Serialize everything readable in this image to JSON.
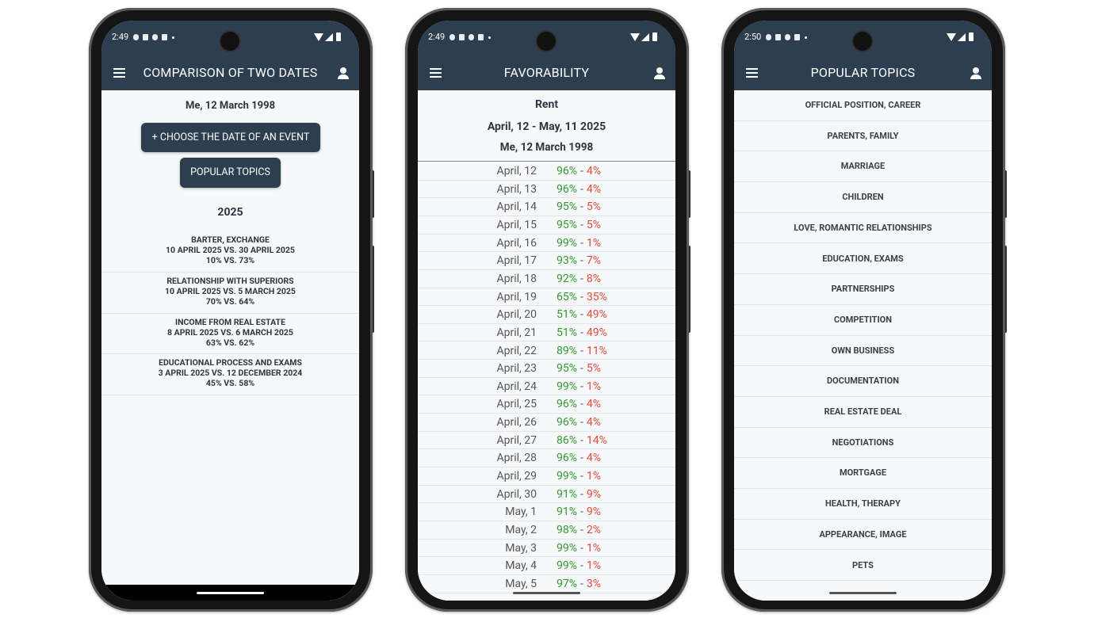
{
  "screens": [
    {
      "status_time": "2:49",
      "title": "COMPARISON OF TWO DATES",
      "subtitle": "Me, 12 March 1998",
      "buttons": [
        "+ CHOOSE THE DATE OF AN EVENT",
        "POPULAR TOPICS"
      ],
      "year": "2025",
      "items": [
        {
          "title": "BARTER, EXCHANGE",
          "dates": "10 APRIL 2025 VS. 30 APRIL 2025",
          "result": "10% VS. 73%"
        },
        {
          "title": "RELATIONSHIP WITH SUPERIORS",
          "dates": "10 APRIL 2025 VS. 5 MARCH 2025",
          "result": "70% VS. 64%"
        },
        {
          "title": "INCOME FROM REAL ESTATE",
          "dates": "8 APRIL 2025 VS. 6 MARCH 2025",
          "result": "63% VS. 62%"
        },
        {
          "title": "EDUCATIONAL PROCESS AND EXAMS",
          "dates": "3 APRIL 2025 VS. 12 DECEMBER 2024",
          "result": "45% VS. 58%"
        }
      ]
    },
    {
      "status_time": "2:49",
      "title": "FAVORABILITY",
      "topic": "Rent",
      "range": "April, 12 - May, 11 2025",
      "person": "Me, 12 March 1998",
      "separator": "-",
      "rows": [
        {
          "date": "April, 12",
          "good": "96%",
          "bad": "4%"
        },
        {
          "date": "April, 13",
          "good": "96%",
          "bad": "4%"
        },
        {
          "date": "April, 14",
          "good": "95%",
          "bad": "5%"
        },
        {
          "date": "April, 15",
          "good": "95%",
          "bad": "5%"
        },
        {
          "date": "April, 16",
          "good": "99%",
          "bad": "1%"
        },
        {
          "date": "April, 17",
          "good": "93%",
          "bad": "7%"
        },
        {
          "date": "April, 18",
          "good": "92%",
          "bad": "8%"
        },
        {
          "date": "April, 19",
          "good": "65%",
          "bad": "35%"
        },
        {
          "date": "April, 20",
          "good": "51%",
          "bad": "49%"
        },
        {
          "date": "April, 21",
          "good": "51%",
          "bad": "49%"
        },
        {
          "date": "April, 22",
          "good": "89%",
          "bad": "11%"
        },
        {
          "date": "April, 23",
          "good": "95%",
          "bad": "5%"
        },
        {
          "date": "April, 24",
          "good": "99%",
          "bad": "1%"
        },
        {
          "date": "April, 25",
          "good": "96%",
          "bad": "4%"
        },
        {
          "date": "April, 26",
          "good": "96%",
          "bad": "4%"
        },
        {
          "date": "April, 27",
          "good": "86%",
          "bad": "14%"
        },
        {
          "date": "April, 28",
          "good": "96%",
          "bad": "4%"
        },
        {
          "date": "April, 29",
          "good": "99%",
          "bad": "1%"
        },
        {
          "date": "April, 30",
          "good": "91%",
          "bad": "9%"
        },
        {
          "date": "May, 1",
          "good": "91%",
          "bad": "9%"
        },
        {
          "date": "May, 2",
          "good": "98%",
          "bad": "2%"
        },
        {
          "date": "May, 3",
          "good": "99%",
          "bad": "1%"
        },
        {
          "date": "May, 4",
          "good": "99%",
          "bad": "1%"
        },
        {
          "date": "May, 5",
          "good": "97%",
          "bad": "3%"
        }
      ]
    },
    {
      "status_time": "2:50",
      "title": "POPULAR TOPICS",
      "topics": [
        "OFFICIAL POSITION, CAREER",
        "PARENTS, FAMILY",
        "MARRIAGE",
        "CHILDREN",
        "LOVE, ROMANTIC RELATIONSHIPS",
        "EDUCATION, EXAMS",
        "PARTNERSHIPS",
        "COMPETITION",
        "OWN BUSINESS",
        "DOCUMENTATION",
        "REAL ESTATE DEAL",
        "NEGOTIATIONS",
        "MORTGAGE",
        "HEALTH, THERAPY",
        "APPEARANCE, IMAGE",
        "PETS"
      ]
    }
  ]
}
